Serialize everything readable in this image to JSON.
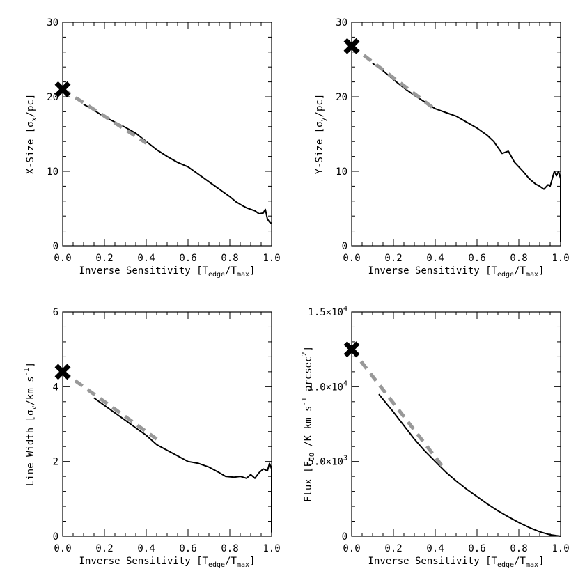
{
  "chart_data": [
    {
      "id": "x-size",
      "type": "line",
      "xlabel": "Inverse Sensitivity [T",
      "xlabel_sub1": "edge",
      "xlabel_mid": "/T",
      "xlabel_sub2": "max",
      "xlabel_end": "]",
      "ylabel": "X-Size [σ",
      "ylabel_sub": "x",
      "ylabel_end": "/pc]",
      "xlim": [
        0,
        1
      ],
      "ylim": [
        0,
        30
      ],
      "xticks": [
        0,
        0.2,
        0.4,
        0.6,
        0.8,
        1.0
      ],
      "xtick_labels": [
        "0.0",
        "0.2",
        "0.4",
        "0.6",
        "0.8",
        "1.0"
      ],
      "yticks": [
        0,
        10,
        20,
        30
      ],
      "ytick_labels": [
        "0",
        "10",
        "20",
        "30"
      ],
      "x": [
        0.1,
        0.15,
        0.2,
        0.25,
        0.3,
        0.35,
        0.4,
        0.45,
        0.5,
        0.55,
        0.6,
        0.65,
        0.7,
        0.75,
        0.8,
        0.83,
        0.86,
        0.88,
        0.9,
        0.92,
        0.94,
        0.96,
        0.97,
        0.98,
        0.99,
        1.0
      ],
      "y": [
        19.0,
        18.2,
        17.3,
        16.6,
        15.9,
        15.1,
        14.0,
        12.9,
        12.0,
        11.2,
        10.6,
        9.6,
        8.6,
        7.6,
        6.6,
        5.9,
        5.4,
        5.1,
        4.9,
        4.7,
        4.3,
        4.4,
        4.9,
        3.6,
        3.2,
        3.0
      ],
      "fit_line": {
        "x": [
          0.0,
          0.4
        ],
        "y": [
          21.0,
          13.8
        ],
        "color": "#999999",
        "style": "dashed"
      },
      "marker": {
        "x": 0.0,
        "y": 21.0,
        "symbol": "X"
      }
    },
    {
      "id": "y-size",
      "type": "line",
      "xlabel": "Inverse Sensitivity [T",
      "xlabel_sub1": "edge",
      "xlabel_mid": "/T",
      "xlabel_sub2": "max",
      "xlabel_end": "]",
      "ylabel": "Y-Size [σ",
      "ylabel_sub": "y",
      "ylabel_end": "/pc]",
      "xlim": [
        0,
        1
      ],
      "ylim": [
        0,
        30
      ],
      "xticks": [
        0,
        0.2,
        0.4,
        0.6,
        0.8,
        1.0
      ],
      "xtick_labels": [
        "0.0",
        "0.2",
        "0.4",
        "0.6",
        "0.8",
        "1.0"
      ],
      "yticks": [
        0,
        10,
        20,
        30
      ],
      "ytick_labels": [
        "0",
        "10",
        "20",
        "30"
      ],
      "x": [
        0.1,
        0.15,
        0.2,
        0.25,
        0.3,
        0.35,
        0.4,
        0.45,
        0.5,
        0.55,
        0.6,
        0.65,
        0.68,
        0.72,
        0.75,
        0.78,
        0.82,
        0.85,
        0.88,
        0.9,
        0.92,
        0.94,
        0.95,
        0.97,
        0.98,
        0.99,
        1.0,
        1.0
      ],
      "y": [
        24.5,
        23.5,
        22.3,
        21.2,
        20.2,
        19.3,
        18.4,
        17.9,
        17.4,
        16.6,
        15.8,
        14.8,
        14.0,
        12.4,
        12.7,
        11.2,
        10.0,
        9.0,
        8.3,
        8.0,
        7.6,
        8.2,
        8.0,
        10.0,
        9.4,
        10.0,
        9.0,
        0.5
      ],
      "fit_line": {
        "x": [
          0.0,
          0.4
        ],
        "y": [
          26.8,
          18.3
        ],
        "color": "#999999",
        "style": "dashed"
      },
      "marker": {
        "x": 0.0,
        "y": 26.8,
        "symbol": "X"
      }
    },
    {
      "id": "line-width",
      "type": "line",
      "xlabel": "Inverse Sensitivity [T",
      "xlabel_sub1": "edge",
      "xlabel_mid": "/T",
      "xlabel_sub2": "max",
      "xlabel_end": "]",
      "ylabel": "Line Width [σ",
      "ylabel_sub": "v",
      "ylabel_end": "/km s",
      "ylabel_sup": "-1",
      "ylabel_final": "]",
      "xlim": [
        0,
        1
      ],
      "ylim": [
        0,
        6
      ],
      "xticks": [
        0,
        0.2,
        0.4,
        0.6,
        0.8,
        1.0
      ],
      "xtick_labels": [
        "0.0",
        "0.2",
        "0.4",
        "0.6",
        "0.8",
        "1.0"
      ],
      "yticks": [
        0,
        2,
        4,
        6
      ],
      "ytick_labels": [
        "0",
        "2",
        "4",
        "6"
      ],
      "x": [
        0.15,
        0.2,
        0.25,
        0.3,
        0.35,
        0.4,
        0.45,
        0.5,
        0.55,
        0.6,
        0.65,
        0.7,
        0.75,
        0.78,
        0.82,
        0.85,
        0.88,
        0.9,
        0.92,
        0.94,
        0.96,
        0.98,
        0.99,
        1.0,
        1.0
      ],
      "y": [
        3.7,
        3.5,
        3.3,
        3.1,
        2.9,
        2.7,
        2.45,
        2.3,
        2.15,
        2.0,
        1.95,
        1.85,
        1.7,
        1.6,
        1.58,
        1.6,
        1.55,
        1.65,
        1.55,
        1.7,
        1.8,
        1.75,
        1.95,
        1.8,
        0.1
      ],
      "fit_line": {
        "x": [
          0.0,
          0.45
        ],
        "y": [
          4.4,
          2.6
        ],
        "color": "#999999",
        "style": "dashed"
      },
      "marker": {
        "x": 0.0,
        "y": 4.4,
        "symbol": "X"
      }
    },
    {
      "id": "flux",
      "type": "line",
      "xlabel": "Inverse Sensitivity [T",
      "xlabel_sub1": "edge",
      "xlabel_mid": "/T",
      "xlabel_sub2": "max",
      "xlabel_end": "]",
      "ylabel": "Flux [F",
      "ylabel_sub": "CO",
      "ylabel_end": " /K km s",
      "ylabel_sup": "-1",
      "ylabel_mid2": " arcsec",
      "ylabel_sup2": "2",
      "ylabel_final": "]",
      "xlim": [
        0,
        1
      ],
      "ylim": [
        0,
        15000
      ],
      "xticks": [
        0,
        0.2,
        0.4,
        0.6,
        0.8,
        1.0
      ],
      "xtick_labels": [
        "0.0",
        "0.2",
        "0.4",
        "0.6",
        "0.8",
        "1.0"
      ],
      "yticks": [
        0,
        5000,
        10000,
        15000
      ],
      "ytick_labels": [
        "0",
        "5.0×10",
        "1.0×10",
        "1.5×10"
      ],
      "ytick_sups": [
        "",
        "3",
        "4",
        "4"
      ],
      "x": [
        0.13,
        0.2,
        0.25,
        0.3,
        0.35,
        0.4,
        0.45,
        0.5,
        0.55,
        0.6,
        0.65,
        0.7,
        0.75,
        0.8,
        0.85,
        0.9,
        0.95,
        1.0
      ],
      "y": [
        9500,
        8300,
        7400,
        6500,
        5700,
        5000,
        4300,
        3700,
        3150,
        2650,
        2150,
        1700,
        1300,
        920,
        580,
        300,
        100,
        0
      ],
      "fit_line": {
        "x": [
          0.0,
          0.45
        ],
        "y": [
          12500,
          4400
        ],
        "color": "#999999",
        "style": "dashed"
      },
      "marker": {
        "x": 0.0,
        "y": 12500,
        "symbol": "X"
      }
    }
  ]
}
